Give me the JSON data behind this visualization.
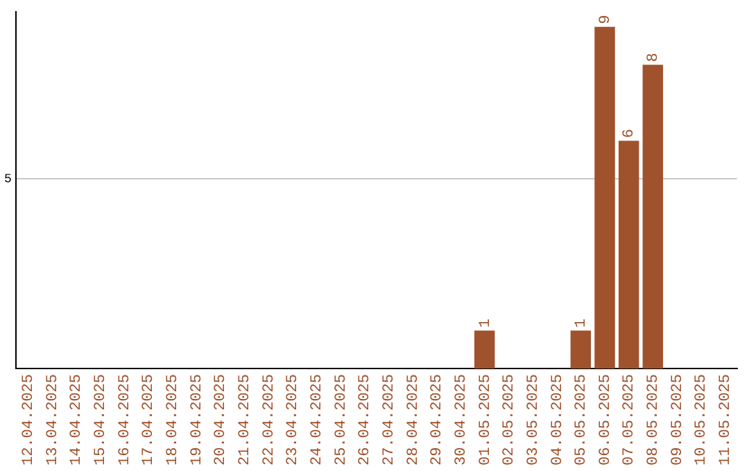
{
  "chart_data": {
    "type": "bar",
    "categories": [
      "12.04.2025",
      "13.04.2025",
      "14.04.2025",
      "15.04.2025",
      "16.04.2025",
      "17.04.2025",
      "18.04.2025",
      "19.04.2025",
      "20.04.2025",
      "21.04.2025",
      "22.04.2025",
      "23.04.2025",
      "24.04.2025",
      "25.04.2025",
      "26.04.2025",
      "27.04.2025",
      "28.04.2025",
      "29.04.2025",
      "30.04.2025",
      "01.05.2025",
      "02.05.2025",
      "03.05.2025",
      "04.05.2025",
      "05.05.2025",
      "06.05.2025",
      "07.05.2025",
      "08.05.2025",
      "09.05.2025",
      "10.05.2025",
      "11.05.2025"
    ],
    "values": [
      null,
      null,
      null,
      null,
      null,
      null,
      null,
      null,
      null,
      null,
      null,
      null,
      null,
      null,
      null,
      null,
      null,
      null,
      null,
      1,
      null,
      null,
      null,
      1,
      9,
      6,
      8,
      null,
      null,
      null
    ],
    "color": "#a0522d",
    "ylim": [
      0,
      9.4
    ],
    "yticks": [
      5
    ],
    "grid": "y",
    "data_labels": true,
    "legend": false
  }
}
